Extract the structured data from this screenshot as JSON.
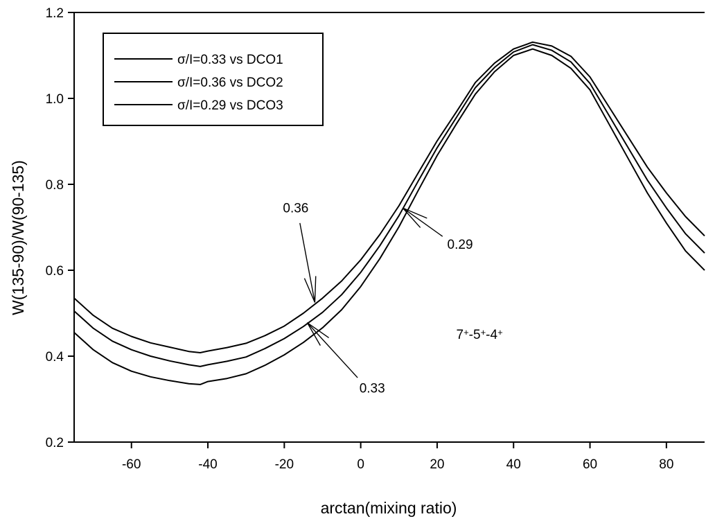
{
  "chart_data": {
    "type": "line",
    "title": "",
    "xlabel": "arctan(mixing ratio)",
    "ylabel": "W(135-90)/W(90-135)",
    "xlim": [
      -75,
      90
    ],
    "ylim": [
      0.2,
      1.2
    ],
    "xticks": [
      -60,
      -40,
      -20,
      0,
      20,
      40,
      60,
      80
    ],
    "yticks": [
      0.2,
      0.4,
      0.6,
      0.8,
      1.0,
      1.2
    ],
    "xtick_labels": [
      "-60",
      "-40",
      "-20",
      "0",
      "20",
      "40",
      "60",
      "80"
    ],
    "ytick_labels": [
      "0.2",
      "0.4",
      "0.6",
      "0.8",
      "1.0",
      "1.2"
    ],
    "grid": false,
    "legend_position": "top-left",
    "series": [
      {
        "name": "σ/I=0.33 vs DCO1",
        "x": [
          -75,
          -70,
          -65,
          -60,
          -55,
          -50,
          -45,
          -42,
          -40,
          -35,
          -30,
          -25,
          -20,
          -15,
          -10,
          -5,
          0,
          5,
          10,
          15,
          20,
          25,
          30,
          35,
          40,
          45,
          50,
          55,
          60,
          65,
          70,
          75,
          80,
          85,
          90
        ],
        "y": [
          0.455,
          0.415,
          0.385,
          0.365,
          0.352,
          0.343,
          0.336,
          0.334,
          0.341,
          0.348,
          0.359,
          0.379,
          0.403,
          0.432,
          0.466,
          0.508,
          0.562,
          0.627,
          0.701,
          0.785,
          0.867,
          0.94,
          1.01,
          1.062,
          1.1,
          1.115,
          1.1,
          1.07,
          1.02,
          0.94,
          0.86,
          0.78,
          0.71,
          0.645,
          0.6
        ]
      },
      {
        "name": "σ/I=0.36 vs DCO2",
        "x": [
          -75,
          -70,
          -65,
          -60,
          -55,
          -50,
          -45,
          -42,
          -40,
          -35,
          -30,
          -25,
          -20,
          -15,
          -10,
          -5,
          0,
          5,
          10,
          15,
          20,
          25,
          30,
          35,
          40,
          45,
          50,
          55,
          60,
          65,
          70,
          75,
          80,
          85,
          90
        ],
        "y": [
          0.535,
          0.495,
          0.465,
          0.446,
          0.431,
          0.421,
          0.411,
          0.408,
          0.412,
          0.42,
          0.43,
          0.448,
          0.47,
          0.5,
          0.535,
          0.575,
          0.624,
          0.683,
          0.75,
          0.826,
          0.901,
          0.968,
          1.037,
          1.082,
          1.115,
          1.131,
          1.122,
          1.098,
          1.05,
          0.98,
          0.91,
          0.84,
          0.78,
          0.725,
          0.68
        ]
      },
      {
        "name": "σ/I=0.29 vs DCO3",
        "x": [
          -75,
          -70,
          -65,
          -60,
          -55,
          -50,
          -45,
          -42,
          -40,
          -35,
          -30,
          -25,
          -20,
          -15,
          -10,
          -5,
          0,
          5,
          10,
          15,
          20,
          25,
          30,
          35,
          40,
          45,
          50,
          55,
          60,
          65,
          70,
          75,
          80,
          85,
          90
        ],
        "y": [
          0.505,
          0.465,
          0.435,
          0.415,
          0.4,
          0.389,
          0.38,
          0.376,
          0.38,
          0.388,
          0.398,
          0.418,
          0.441,
          0.469,
          0.502,
          0.543,
          0.595,
          0.657,
          0.727,
          0.807,
          0.885,
          0.955,
          1.025,
          1.072,
          1.108,
          1.125,
          1.112,
          1.085,
          1.035,
          0.96,
          0.885,
          0.81,
          0.745,
          0.685,
          0.64
        ]
      }
    ],
    "annotations": [
      {
        "text": "0.36",
        "label_x": -17,
        "label_y": 0.735,
        "arrow_tip_x": -12,
        "arrow_tip_y": 0.525
      },
      {
        "text": "0.29",
        "label_x": 26,
        "label_y": 0.65,
        "arrow_tip_x": 11,
        "arrow_tip_y": 0.745
      },
      {
        "text": "0.33",
        "label_x": 3,
        "label_y": 0.315,
        "arrow_tip_x": -14,
        "arrow_tip_y": 0.478
      }
    ],
    "transition_label": {
      "parts": [
        "7",
        "+",
        "-5",
        "+",
        "-4",
        "+"
      ],
      "x": 25,
      "y": 0.44
    }
  }
}
